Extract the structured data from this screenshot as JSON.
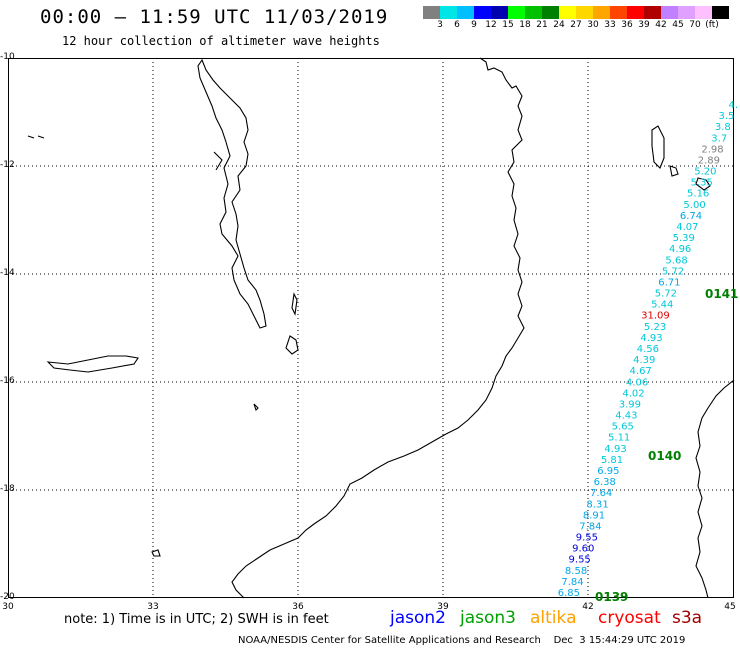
{
  "header": {
    "title": "00:00 – 11:59 UTC 11/03/2019",
    "subtitle": "12 hour collection of altimeter wave heights"
  },
  "color_scale": {
    "unit": "(ft)",
    "colors": [
      "#808080",
      "#00e5e5",
      "#00bfff",
      "#0000ff",
      "#0000b0",
      "#00ff00",
      "#00c000",
      "#008000",
      "#ffff00",
      "#ffd700",
      "#ffa500",
      "#ff4500",
      "#ff0000",
      "#b00000",
      "#c080ff",
      "#e0a0ff",
      "#ffc0ff",
      "#000000"
    ],
    "labels": [
      "3",
      "6",
      "9",
      "12",
      "15",
      "18",
      "21",
      "24",
      "27",
      "30",
      "33",
      "36",
      "39",
      "42",
      "45",
      "70"
    ]
  },
  "axes": {
    "lat_labels": [
      "-10",
      "-12",
      "-14",
      "-16",
      "-18",
      "-20"
    ],
    "lon_labels": [
      "30",
      "33",
      "36",
      "39",
      "42",
      "45"
    ]
  },
  "passes": [
    "0141",
    "0140",
    "0139"
  ],
  "measurements": [
    {
      "v": "4.",
      "c": "#00c8d8"
    },
    {
      "v": "3.5",
      "c": "#00c8d8"
    },
    {
      "v": "3.8",
      "c": "#00c8d8"
    },
    {
      "v": "3.7",
      "c": "#00c8d8"
    },
    {
      "v": "2.98",
      "c": "#808080"
    },
    {
      "v": "2.89",
      "c": "#808080"
    },
    {
      "v": "5.20",
      "c": "#00c8d8"
    },
    {
      "v": "5.35",
      "c": "#00c8d8"
    },
    {
      "v": "5.16",
      "c": "#00c8d8"
    },
    {
      "v": "5.00",
      "c": "#00c8d8"
    },
    {
      "v": "6.74",
      "c": "#00a8e8"
    },
    {
      "v": "4.07",
      "c": "#00c8d8"
    },
    {
      "v": "5.39",
      "c": "#00c8d8"
    },
    {
      "v": "4.96",
      "c": "#00c8d8"
    },
    {
      "v": "5.68",
      "c": "#00c8d8"
    },
    {
      "v": "5.72",
      "c": "#00c8d8"
    },
    {
      "v": "6.71",
      "c": "#00a8e8"
    },
    {
      "v": "5.72",
      "c": "#00c8d8"
    },
    {
      "v": "5.44",
      "c": "#00c8d8"
    },
    {
      "v": "31.09",
      "c": "#e00000"
    },
    {
      "v": "5.23",
      "c": "#00c8d8"
    },
    {
      "v": "4.93",
      "c": "#00c8d8"
    },
    {
      "v": "4.56",
      "c": "#00c8d8"
    },
    {
      "v": "4.39",
      "c": "#00c8d8"
    },
    {
      "v": "4.67",
      "c": "#00c8d8"
    },
    {
      "v": "4.06",
      "c": "#00c8d8"
    },
    {
      "v": "4.02",
      "c": "#00c8d8"
    },
    {
      "v": "3.99",
      "c": "#00c8d8"
    },
    {
      "v": "4.43",
      "c": "#00c8d8"
    },
    {
      "v": "5.65",
      "c": "#00c8d8"
    },
    {
      "v": "5.11",
      "c": "#00c8d8"
    },
    {
      "v": "4.93",
      "c": "#00c8d8"
    },
    {
      "v": "5.81",
      "c": "#00c8d8"
    },
    {
      "v": "6.95",
      "c": "#00a8e8"
    },
    {
      "v": "6.38",
      "c": "#00a8e8"
    },
    {
      "v": "7.64",
      "c": "#00a8e8"
    },
    {
      "v": "8.31",
      "c": "#00a8e8"
    },
    {
      "v": "8.91",
      "c": "#00a8e8"
    },
    {
      "v": "7.84",
      "c": "#00a8e8"
    },
    {
      "v": "9.55",
      "c": "#0000e0"
    },
    {
      "v": "9.60",
      "c": "#0000e0"
    },
    {
      "v": "9.55",
      "c": "#0000e0"
    },
    {
      "v": "8.58",
      "c": "#00a8e8"
    },
    {
      "v": "7.84",
      "c": "#00a8e8"
    },
    {
      "v": "6.85",
      "c": "#00a8e8"
    }
  ],
  "note": "note: 1) Time is in UTC; 2) SWH is in feet",
  "satellites": [
    {
      "name": "jason2",
      "color": "#0000ff"
    },
    {
      "name": "jason3",
      "color": "#00a000"
    },
    {
      "name": "altika",
      "color": "#ffa000"
    },
    {
      "name": "cryosat",
      "color": "#ff0000"
    },
    {
      "name": "s3a",
      "color": "#a00000"
    }
  ],
  "footer": "NOAA/NESDIS Center for Satellite Applications and Research    Dec  3 15:44:29 UTC 2019"
}
